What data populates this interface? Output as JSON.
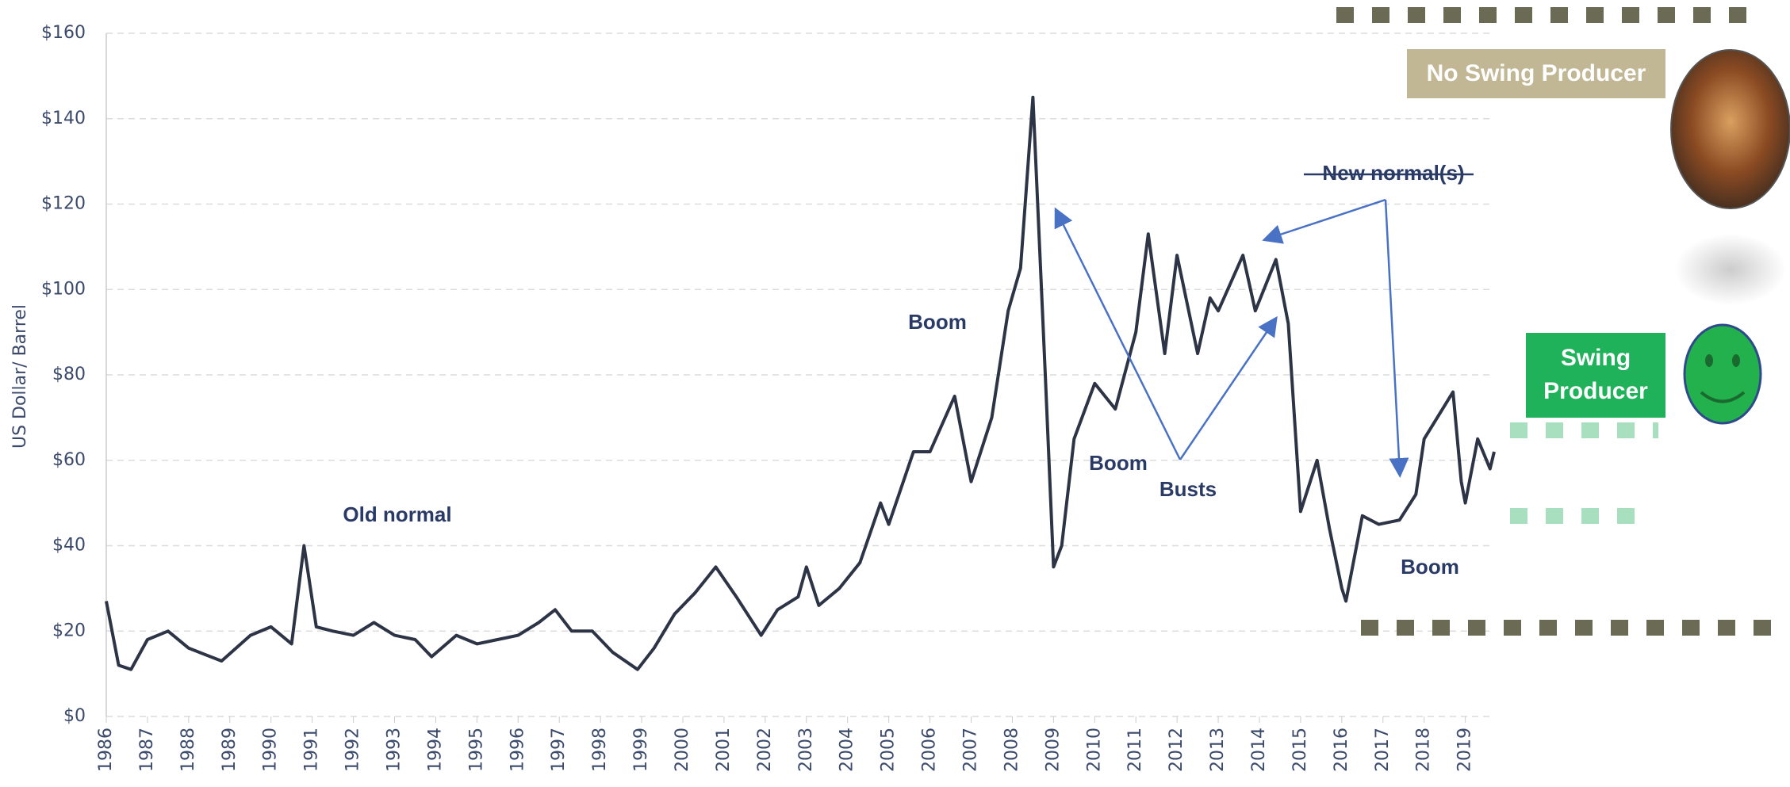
{
  "chart_data": {
    "type": "line",
    "y_label": "US Dollar/ Barrel",
    "color": "#2d3446",
    "grid": true,
    "xlim": [
      1986,
      2019.7
    ],
    "xticks": [
      1986,
      1987,
      1988,
      1989,
      1990,
      1991,
      1992,
      1993,
      1994,
      1995,
      1996,
      1997,
      1998,
      1999,
      2000,
      2001,
      2002,
      2003,
      2004,
      2005,
      2006,
      2007,
      2008,
      2009,
      2010,
      2011,
      2012,
      2013,
      2014,
      2015,
      2016,
      2017,
      2018,
      2019
    ],
    "ylim": [
      0,
      160
    ],
    "yticks": [
      {
        "value": 0,
        "label": "$0"
      },
      {
        "value": 20,
        "label": "$20"
      },
      {
        "value": 40,
        "label": "$40"
      },
      {
        "value": 60,
        "label": "$60"
      },
      {
        "value": 80,
        "label": "$80"
      },
      {
        "value": 100,
        "label": "$100"
      },
      {
        "value": 120,
        "label": "$120"
      },
      {
        "value": 140,
        "label": "$140"
      },
      {
        "value": 160,
        "label": "$160"
      }
    ],
    "x": [
      1986.0,
      1986.3,
      1986.6,
      1987.0,
      1987.5,
      1988.0,
      1988.8,
      1989.5,
      1990.0,
      1990.5,
      1990.8,
      1991.1,
      1991.5,
      1992.0,
      1992.5,
      1993.0,
      1993.5,
      1993.9,
      1994.5,
      1995.0,
      1995.5,
      1996.0,
      1996.5,
      1996.9,
      1997.3,
      1997.8,
      1998.3,
      1998.9,
      1999.3,
      1999.8,
      2000.3,
      2000.8,
      2001.3,
      2001.9,
      2002.3,
      2002.8,
      2003.0,
      2003.3,
      2003.8,
      2004.3,
      2004.8,
      2005.0,
      2005.6,
      2006.0,
      2006.6,
      2007.0,
      2007.5,
      2007.9,
      2008.2,
      2008.5,
      2008.8,
      2009.0,
      2009.2,
      2009.5,
      2010.0,
      2010.5,
      2011.0,
      2011.3,
      2011.7,
      2012.0,
      2012.5,
      2012.8,
      2013.0,
      2013.6,
      2013.9,
      2014.4,
      2014.7,
      2015.0,
      2015.4,
      2015.7,
      2016.0,
      2016.1,
      2016.5,
      2016.9,
      2017.4,
      2017.8,
      2018.0,
      2018.7,
      2018.9,
      2019.0,
      2019.3,
      2019.6,
      2019.7
    ],
    "values": [
      27,
      12,
      11,
      18,
      20,
      16,
      13,
      19,
      21,
      17,
      40,
      21,
      20,
      19,
      22,
      19,
      18,
      14,
      19,
      17,
      18,
      19,
      22,
      25,
      20,
      20,
      15,
      11,
      16,
      24,
      29,
      35,
      28,
      19,
      25,
      28,
      35,
      26,
      30,
      36,
      50,
      45,
      62,
      62,
      75,
      55,
      70,
      95,
      105,
      145,
      80,
      35,
      40,
      65,
      78,
      72,
      90,
      113,
      85,
      108,
      85,
      98,
      95,
      108,
      95,
      107,
      92,
      48,
      60,
      44,
      30,
      27,
      47,
      45,
      46,
      52,
      65,
      76,
      55,
      50,
      65,
      58,
      62
    ],
    "annotations": [
      "Old normal",
      "Boom",
      "Boom",
      "Busts",
      "Boom",
      "New normal(s)"
    ],
    "no_swing_producer": "No Swing Producer",
    "swing_producer": [
      "Swing",
      "Producer"
    ]
  }
}
